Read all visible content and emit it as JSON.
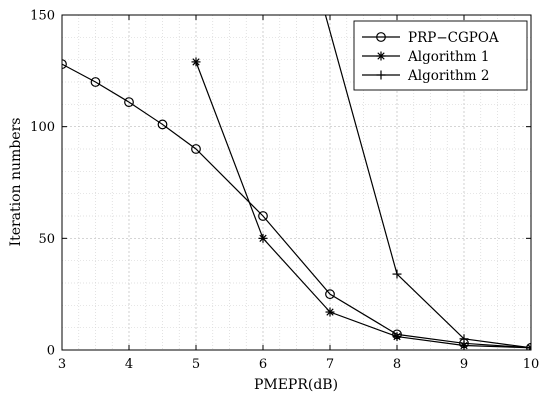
{
  "chart_data": {
    "type": "line",
    "title": "",
    "xlabel": "PMEPR(dB)",
    "ylabel": "Iteration numbers",
    "xlim": [
      3,
      10
    ],
    "ylim": [
      0,
      150
    ],
    "xticks": [
      3,
      4,
      5,
      6,
      7,
      8,
      9,
      10
    ],
    "yticks": [
      0,
      50,
      100,
      150
    ],
    "grid": true,
    "legend_position": "top-right",
    "series": [
      {
        "name": "PRP−CGPOA",
        "marker": "circle",
        "color": "#000000",
        "x": [
          3,
          3.5,
          4,
          4.5,
          5,
          6,
          7,
          8,
          9,
          10
        ],
        "y": [
          128,
          120,
          111,
          101,
          90,
          60,
          25,
          7,
          3,
          1
        ]
      },
      {
        "name": "Algorithm 1",
        "marker": "asterisk",
        "color": "#000000",
        "x": [
          5,
          6,
          7,
          8,
          9,
          10
        ],
        "y": [
          129,
          50,
          17,
          6,
          2,
          1
        ]
      },
      {
        "name": "Algorithm 2",
        "marker": "plus",
        "color": "#000000",
        "x": [
          6.84,
          8,
          9,
          10
        ],
        "y": [
          160,
          34,
          5,
          1
        ]
      }
    ]
  }
}
